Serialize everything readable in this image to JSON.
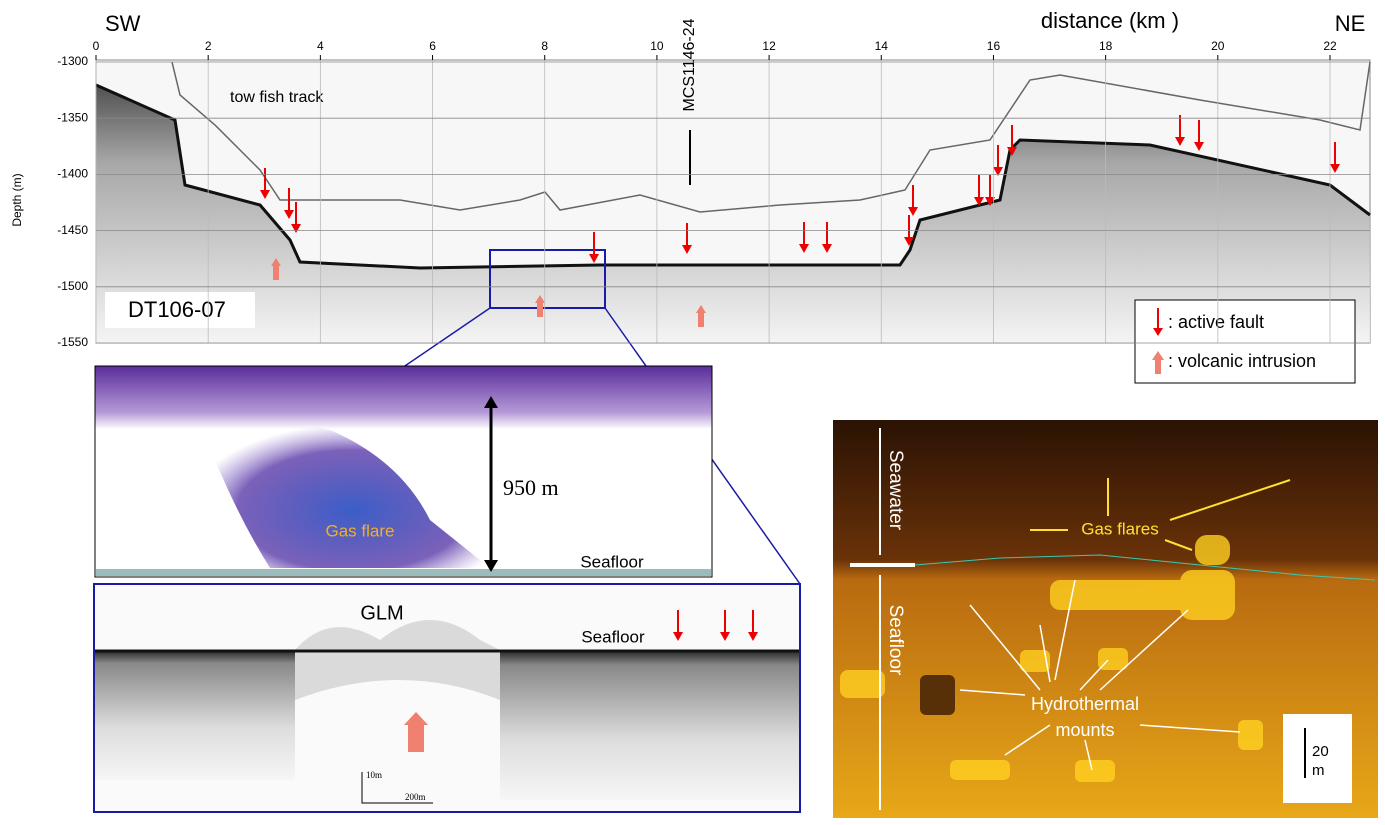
{
  "profile": {
    "sw": "SW",
    "ne": "NE",
    "x_label": "distance (km )",
    "y_label": "Depth (m)",
    "x_ticks": [
      0,
      2,
      4,
      6,
      8,
      10,
      12,
      14,
      16,
      18,
      20,
      22
    ],
    "y_ticks": [
      -1300,
      -1350,
      -1400,
      -1450,
      -1500,
      -1550
    ],
    "line_name": "DT106-07",
    "cross_line": "MCS1146-24",
    "tow_fish": "tow fish track",
    "legend": {
      "fault": ":  active fault",
      "intrusion": ":  volcanic intrusion"
    }
  },
  "echogram": {
    "height": "950 m",
    "gas_flare": "Gas flare",
    "seafloor": "Seafloor"
  },
  "sbp": {
    "glm": "GLM",
    "seafloor": "Seafloor",
    "scale_v": "10m",
    "scale_h": "200m"
  },
  "sidescan": {
    "seawater": "Seawater",
    "seafloor": "Seafloor",
    "gas_flares": "Gas flares",
    "hydro_1": "Hydrothermal",
    "hydro_2": "mounts",
    "scale_1": "20",
    "scale_2": "m"
  }
}
